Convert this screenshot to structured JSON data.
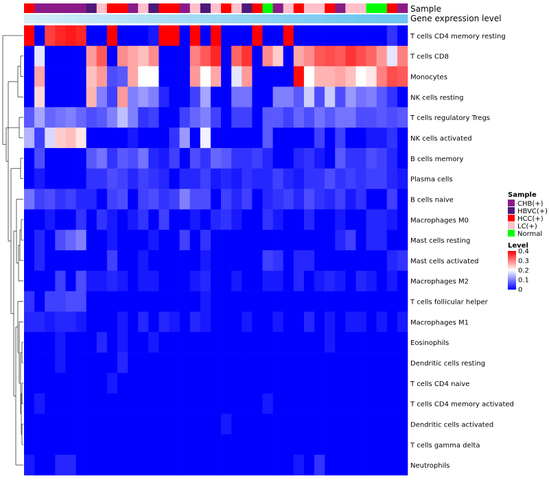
{
  "chart_data": {
    "type": "heatmap",
    "title": "",
    "annotation_labels": [
      "Sample",
      "Gene expression level"
    ],
    "columns": [
      {
        "sample": "HCC(+)",
        "level": 0.02
      },
      {
        "sample": "CHB(+)",
        "level": 0.05
      },
      {
        "sample": "CHB(+)",
        "level": 0.08
      },
      {
        "sample": "CHB(+)",
        "level": 0.11
      },
      {
        "sample": "CHB(+)",
        "level": 0.14
      },
      {
        "sample": "CHB(+)",
        "level": 0.17
      },
      {
        "sample": "HBVC(+)",
        "level": 0.2
      },
      {
        "sample": "LC(+)",
        "level": 0.23
      },
      {
        "sample": "HCC(+)",
        "level": 0.26
      },
      {
        "sample": "HCC(+)",
        "level": 0.29
      },
      {
        "sample": "CHB(+)",
        "level": 0.32
      },
      {
        "sample": "LC(+)",
        "level": 0.35
      },
      {
        "sample": "HBVC(+)",
        "level": 0.38
      },
      {
        "sample": "HCC(+)",
        "level": 0.41
      },
      {
        "sample": "HCC(+)",
        "level": 0.44
      },
      {
        "sample": "CHB(+)",
        "level": 0.47
      },
      {
        "sample": "LC(+)",
        "level": 0.5
      },
      {
        "sample": "HBVC(+)",
        "level": 0.53
      },
      {
        "sample": "LC(+)",
        "level": 0.56
      },
      {
        "sample": "HCC(+)",
        "level": 0.59
      },
      {
        "sample": "LC(+)",
        "level": 0.62
      },
      {
        "sample": "HBVC(+)",
        "level": 0.65
      },
      {
        "sample": "HCC(+)",
        "level": 0.68
      },
      {
        "sample": "Normal",
        "level": 0.71
      },
      {
        "sample": "CHB(+)",
        "level": 0.74
      },
      {
        "sample": "LC(+)",
        "level": 0.77
      },
      {
        "sample": "HCC(+)",
        "level": 0.8
      },
      {
        "sample": "LC(+)",
        "level": 0.83
      },
      {
        "sample": "LC(+)",
        "level": 0.86
      },
      {
        "sample": "HCC(+)",
        "level": 0.89
      },
      {
        "sample": "CHB(+)",
        "level": 0.92
      },
      {
        "sample": "LC(+)",
        "level": 0.95
      },
      {
        "sample": "LC(+)",
        "level": 0.97
      },
      {
        "sample": "Normal",
        "level": 0.98
      },
      {
        "sample": "Normal",
        "level": 0.99
      },
      {
        "sample": "HCC(+)",
        "level": 1.0
      },
      {
        "sample": "CHB(+)",
        "level": 1.0
      }
    ],
    "rows": [
      {
        "name": "T cells CD4 memory resting",
        "values": [
          0.4,
          0.0,
          0.35,
          0.37,
          0.38,
          0.37,
          0.0,
          0.0,
          0.4,
          0.0,
          0.0,
          0.0,
          0.02,
          0.4,
          0.4,
          0.0,
          0.4,
          0.0,
          0.4,
          0.0,
          0.0,
          0.0,
          0.4,
          0.0,
          0.0,
          0.4,
          0.0,
          0.0,
          0.0,
          0.0,
          0.0,
          0.0,
          0.0,
          0.0,
          0.0,
          0.04,
          0.0
        ]
      },
      {
        "name": "T cells CD8",
        "values": [
          0.0,
          0.18,
          0.0,
          0.0,
          0.0,
          0.0,
          0.28,
          0.33,
          0.0,
          0.29,
          0.27,
          0.25,
          0.29,
          0.0,
          0.0,
          0.0,
          0.3,
          0.33,
          0.37,
          0.0,
          0.32,
          0.36,
          0.0,
          0.29,
          0.24,
          0.0,
          0.27,
          0.29,
          0.33,
          0.34,
          0.33,
          0.36,
          0.34,
          0.32,
          0.28,
          0.18,
          0.3
        ]
      },
      {
        "name": "Monocytes",
        "values": [
          0.0,
          0.27,
          0.0,
          0.0,
          0.0,
          0.0,
          0.25,
          0.28,
          0.06,
          0.07,
          0.27,
          0.2,
          0.2,
          0.0,
          0.0,
          0.0,
          0.28,
          0.2,
          0.27,
          0.0,
          0.18,
          0.28,
          0.0,
          0.0,
          0.0,
          0.0,
          0.39,
          0.2,
          0.26,
          0.26,
          0.27,
          0.25,
          0.2,
          0.22,
          0.3,
          0.34,
          0.33
        ]
      },
      {
        "name": "NK cells resting",
        "values": [
          0.0,
          0.23,
          0.0,
          0.0,
          0.0,
          0.0,
          0.26,
          0.1,
          0.05,
          0.28,
          0.1,
          0.12,
          0.1,
          0.03,
          0.0,
          0.0,
          0.05,
          0.13,
          0.0,
          0.0,
          0.09,
          0.09,
          0.0,
          0.0,
          0.1,
          0.1,
          0.07,
          0.16,
          0.06,
          0.16,
          0.06,
          0.12,
          0.09,
          0.1,
          0.07,
          0.04,
          0.0
        ]
      },
      {
        "name": "T cells regulatory  Tregs",
        "values": [
          0.07,
          0.13,
          0.08,
          0.09,
          0.1,
          0.08,
          0.06,
          0.07,
          0.1,
          0.15,
          0.1,
          0.04,
          0.05,
          0.0,
          0.0,
          0.05,
          0.08,
          0.1,
          0.05,
          0.0,
          0.05,
          0.05,
          0.0,
          0.07,
          0.07,
          0.05,
          0.08,
          0.06,
          0.09,
          0.07,
          0.09,
          0.09,
          0.06,
          0.06,
          0.07,
          0.06,
          0.07
        ]
      },
      {
        "name": "NK cells activated",
        "values": [
          0.14,
          0.05,
          0.17,
          0.24,
          0.25,
          0.22,
          0.0,
          0.0,
          0.0,
          0.0,
          0.02,
          0.0,
          0.0,
          0.0,
          0.04,
          0.12,
          0.0,
          0.19,
          0.0,
          0.0,
          0.0,
          0.0,
          0.0,
          0.07,
          0.0,
          0.0,
          0.0,
          0.0,
          0.05,
          0.0,
          0.05,
          0.0,
          0.0,
          0.02,
          0.02,
          0.04,
          0.0
        ]
      },
      {
        "name": "B cells memory",
        "values": [
          0.0,
          0.06,
          0.0,
          0.0,
          0.0,
          0.0,
          0.07,
          0.09,
          0.04,
          0.07,
          0.06,
          0.09,
          0.03,
          0.02,
          0.05,
          0.0,
          0.06,
          0.04,
          0.08,
          0.07,
          0.04,
          0.04,
          0.05,
          0.03,
          0.0,
          0.0,
          0.03,
          0.04,
          0.02,
          0.0,
          0.07,
          0.04,
          0.04,
          0.06,
          0.05,
          0.03,
          0.0
        ]
      },
      {
        "name": "Plasma cells",
        "values": [
          0.0,
          0.02,
          0.0,
          0.0,
          0.0,
          0.0,
          0.04,
          0.04,
          0.06,
          0.05,
          0.03,
          0.05,
          0.04,
          0.03,
          0.0,
          0.03,
          0.03,
          0.05,
          0.02,
          0.03,
          0.02,
          0.04,
          0.03,
          0.03,
          0.05,
          0.03,
          0.02,
          0.04,
          0.04,
          0.06,
          0.04,
          0.05,
          0.04,
          0.05,
          0.05,
          0.03,
          0.02
        ]
      },
      {
        "name": "B cells naive",
        "values": [
          0.09,
          0.05,
          0.06,
          0.04,
          0.05,
          0.03,
          0.03,
          0.0,
          0.05,
          0.06,
          0.0,
          0.05,
          0.06,
          0.04,
          0.05,
          0.1,
          0.06,
          0.06,
          0.0,
          0.05,
          0.03,
          0.05,
          0.0,
          0.03,
          0.04,
          0.05,
          0.03,
          0.06,
          0.04,
          0.03,
          0.05,
          0.02,
          0.04,
          0.0,
          0.0,
          0.05,
          0.0
        ]
      },
      {
        "name": "Macrophages M0",
        "values": [
          0.0,
          0.0,
          0.02,
          0.0,
          0.0,
          0.04,
          0.0,
          0.04,
          0.02,
          0.0,
          0.02,
          0.04,
          0.0,
          0.05,
          0.0,
          0.0,
          0.02,
          0.0,
          0.03,
          0.04,
          0.02,
          0.0,
          0.0,
          0.04,
          0.02,
          0.0,
          0.0,
          0.03,
          0.0,
          0.0,
          0.02,
          0.0,
          0.0,
          0.03,
          0.03,
          0.02,
          0.0
        ]
      },
      {
        "name": "Mast cells resting",
        "values": [
          0.0,
          0.03,
          0.0,
          0.06,
          0.08,
          0.1,
          0.0,
          0.0,
          0.02,
          0.0,
          0.0,
          0.0,
          0.02,
          0.0,
          0.0,
          0.05,
          0.0,
          0.04,
          0.0,
          0.0,
          0.0,
          0.0,
          0.0,
          0.0,
          0.0,
          0.0,
          0.0,
          0.0,
          0.0,
          0.0,
          0.03,
          0.05,
          0.0,
          0.03,
          0.03,
          0.0,
          0.0
        ]
      },
      {
        "name": "Mast cells activated",
        "values": [
          0.0,
          0.03,
          0.0,
          0.0,
          0.0,
          0.0,
          0.0,
          0.0,
          0.05,
          0.0,
          0.0,
          0.02,
          0.0,
          0.0,
          0.0,
          0.0,
          0.0,
          0.02,
          0.0,
          0.0,
          0.0,
          0.0,
          0.0,
          0.05,
          0.04,
          0.0,
          0.03,
          0.03,
          0.0,
          0.0,
          0.0,
          0.0,
          0.0,
          0.0,
          0.0,
          0.03,
          0.04
        ]
      },
      {
        "name": "Macrophages M2",
        "values": [
          0.0,
          0.0,
          0.0,
          0.05,
          0.0,
          0.06,
          0.02,
          0.02,
          0.03,
          0.02,
          0.0,
          0.02,
          0.02,
          0.0,
          0.0,
          0.0,
          0.02,
          0.03,
          0.0,
          0.0,
          0.02,
          0.0,
          0.0,
          0.02,
          0.02,
          0.0,
          0.03,
          0.0,
          0.02,
          0.03,
          0.02,
          0.0,
          0.03,
          0.02,
          0.0,
          0.02,
          0.0
        ]
      },
      {
        "name": "T cells follicular helper",
        "values": [
          0.04,
          0.0,
          0.05,
          0.05,
          0.06,
          0.06,
          0.0,
          0.0,
          0.0,
          0.0,
          0.0,
          0.0,
          0.0,
          0.0,
          0.0,
          0.0,
          0.0,
          0.02,
          0.0,
          0.0,
          0.0,
          0.0,
          0.0,
          0.0,
          0.0,
          0.0,
          0.0,
          0.0,
          0.0,
          0.0,
          0.0,
          0.0,
          0.0,
          0.0,
          0.0,
          0.0,
          0.0
        ]
      },
      {
        "name": "Macrophages M1",
        "values": [
          0.03,
          0.03,
          0.02,
          0.03,
          0.03,
          0.02,
          0.0,
          0.0,
          0.0,
          0.02,
          0.0,
          0.03,
          0.0,
          0.03,
          0.02,
          0.0,
          0.03,
          0.02,
          0.0,
          0.0,
          0.0,
          0.02,
          0.0,
          0.0,
          0.02,
          0.0,
          0.0,
          0.03,
          0.0,
          0.02,
          0.0,
          0.02,
          0.02,
          0.0,
          0.02,
          0.0,
          0.02
        ]
      },
      {
        "name": "Eosinophils",
        "values": [
          0.0,
          0.0,
          0.0,
          0.02,
          0.0,
          0.0,
          0.0,
          0.03,
          0.0,
          0.02,
          0.0,
          0.0,
          0.02,
          0.0,
          0.0,
          0.0,
          0.0,
          0.0,
          0.0,
          0.0,
          0.0,
          0.0,
          0.0,
          0.0,
          0.0,
          0.0,
          0.0,
          0.0,
          0.0,
          0.02,
          0.0,
          0.0,
          0.0,
          0.0,
          0.0,
          0.0,
          0.0
        ]
      },
      {
        "name": "Dendritic cells resting",
        "values": [
          0.0,
          0.0,
          0.0,
          0.02,
          0.0,
          0.0,
          0.0,
          0.0,
          0.0,
          0.03,
          0.0,
          0.0,
          0.0,
          0.0,
          0.0,
          0.0,
          0.0,
          0.0,
          0.0,
          0.0,
          0.0,
          0.0,
          0.0,
          0.0,
          0.0,
          0.0,
          0.0,
          0.0,
          0.0,
          0.0,
          0.0,
          0.0,
          0.0,
          0.0,
          0.0,
          0.0,
          0.0
        ]
      },
      {
        "name": "T cells CD4 naive",
        "values": [
          0.0,
          0.0,
          0.0,
          0.0,
          0.0,
          0.0,
          0.0,
          0.0,
          0.02,
          0.0,
          0.0,
          0.0,
          0.0,
          0.0,
          0.0,
          0.0,
          0.0,
          0.0,
          0.0,
          0.0,
          0.0,
          0.0,
          0.0,
          0.0,
          0.0,
          0.0,
          0.0,
          0.0,
          0.0,
          0.0,
          0.0,
          0.0,
          0.0,
          0.0,
          0.0,
          0.0,
          0.0
        ]
      },
      {
        "name": "T cells CD4 memory activated",
        "values": [
          0.0,
          0.02,
          0.0,
          0.0,
          0.0,
          0.0,
          0.0,
          0.0,
          0.0,
          0.0,
          0.0,
          0.0,
          0.0,
          0.0,
          0.0,
          0.0,
          0.0,
          0.0,
          0.0,
          0.0,
          0.0,
          0.0,
          0.0,
          0.02,
          0.0,
          0.0,
          0.0,
          0.0,
          0.0,
          0.0,
          0.0,
          0.0,
          0.0,
          0.0,
          0.0,
          0.0,
          0.0
        ]
      },
      {
        "name": "Dendritic cells activated",
        "values": [
          0.0,
          0.0,
          0.0,
          0.0,
          0.0,
          0.0,
          0.0,
          0.0,
          0.0,
          0.0,
          0.0,
          0.0,
          0.0,
          0.0,
          0.0,
          0.0,
          0.0,
          0.0,
          0.0,
          0.02,
          0.0,
          0.0,
          0.0,
          0.0,
          0.0,
          0.0,
          0.0,
          0.0,
          0.0,
          0.0,
          0.0,
          0.0,
          0.0,
          0.0,
          0.0,
          0.0,
          0.0
        ]
      },
      {
        "name": "T cells gamma delta",
        "values": [
          0.0,
          0.0,
          0.0,
          0.0,
          0.0,
          0.0,
          0.0,
          0.0,
          0.0,
          0.0,
          0.0,
          0.0,
          0.0,
          0.0,
          0.0,
          0.0,
          0.0,
          0.0,
          0.0,
          0.0,
          0.0,
          0.0,
          0.0,
          0.0,
          0.0,
          0.0,
          0.0,
          0.0,
          0.0,
          0.0,
          0.0,
          0.0,
          0.0,
          0.0,
          0.0,
          0.0,
          0.0
        ]
      },
      {
        "name": "Neutrophils",
        "values": [
          0.02,
          0.0,
          0.0,
          0.03,
          0.03,
          0.0,
          0.0,
          0.0,
          0.0,
          0.0,
          0.0,
          0.0,
          0.0,
          0.0,
          0.0,
          0.0,
          0.0,
          0.0,
          0.0,
          0.0,
          0.0,
          0.0,
          0.0,
          0.0,
          0.0,
          0.0,
          0.02,
          0.0,
          0.04,
          0.0,
          0.0,
          0.0,
          0.0,
          0.0,
          0.0,
          0.0,
          0.0
        ]
      }
    ],
    "value_range": [
      0,
      0.4
    ],
    "colors": {
      "low": "#0000ff",
      "mid": "#ffffff",
      "high": "#ff0000",
      "mid_value": 0.2
    },
    "level_palette": {
      "low": "#d6eef8",
      "high": "#6ec6f0"
    },
    "legend": {
      "sample": {
        "title": "Sample",
        "entries": [
          {
            "label": "CHB(+)",
            "color": "#8b1a89"
          },
          {
            "label": "HBVC(+)",
            "color": "#4b1a7a"
          },
          {
            "label": "HCC(+)",
            "color": "#ff0000"
          },
          {
            "label": "LC(+)",
            "color": "#ffc0cb"
          },
          {
            "label": "Normal",
            "color": "#00ff00"
          }
        ]
      },
      "level": {
        "title": "Level",
        "ticks": [
          "0.4",
          "0.3",
          "0.2",
          "0.1",
          "0"
        ],
        "tick_values": [
          0.4,
          0.3,
          0.2,
          0.1,
          0
        ]
      }
    }
  }
}
